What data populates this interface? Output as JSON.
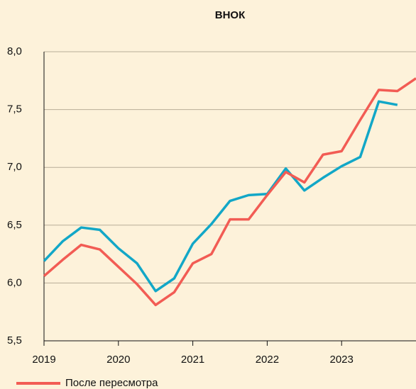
{
  "chart_data": {
    "type": "line",
    "title": "ВНОК",
    "x": [
      2019,
      2019.25,
      2019.5,
      2019.75,
      2020,
      2020.25,
      2020.5,
      2020.75,
      2021,
      2021.25,
      2021.5,
      2021.75,
      2022,
      2022.25,
      2022.5,
      2022.75,
      2023,
      2023.25,
      2023.5,
      2023.75,
      2024
    ],
    "series": [
      {
        "name": "После пересмотра",
        "color": "#f25c54",
        "values": [
          6.06,
          6.2,
          6.33,
          6.29,
          6.14,
          5.99,
          5.81,
          5.92,
          6.17,
          6.25,
          6.55,
          6.55,
          6.76,
          6.96,
          6.87,
          7.11,
          7.14,
          7.41,
          7.67,
          7.66,
          7.77
        ]
      },
      {
        "color": "#12a7c7",
        "values": [
          6.19,
          6.36,
          6.48,
          6.46,
          6.3,
          6.17,
          5.93,
          6.04,
          6.34,
          6.51,
          6.71,
          6.76,
          6.77,
          6.99,
          6.8,
          6.91,
          7.01,
          7.09,
          7.57,
          7.54,
          null
        ]
      }
    ],
    "xlim": [
      2019,
      2024
    ],
    "xticks": [
      2019,
      2020,
      2021,
      2022,
      2023
    ],
    "ylim": [
      5.5,
      8
    ],
    "yticks": [
      {
        "value": 5.5,
        "label": "5,5"
      },
      {
        "value": 6,
        "label": "6,0"
      },
      {
        "value": 6.5,
        "label": "6,5"
      },
      {
        "value": 7,
        "label": "7,0"
      },
      {
        "value": 7.5,
        "label": "7,5"
      },
      {
        "value": 8,
        "label": "8,0"
      }
    ],
    "grid": true
  }
}
